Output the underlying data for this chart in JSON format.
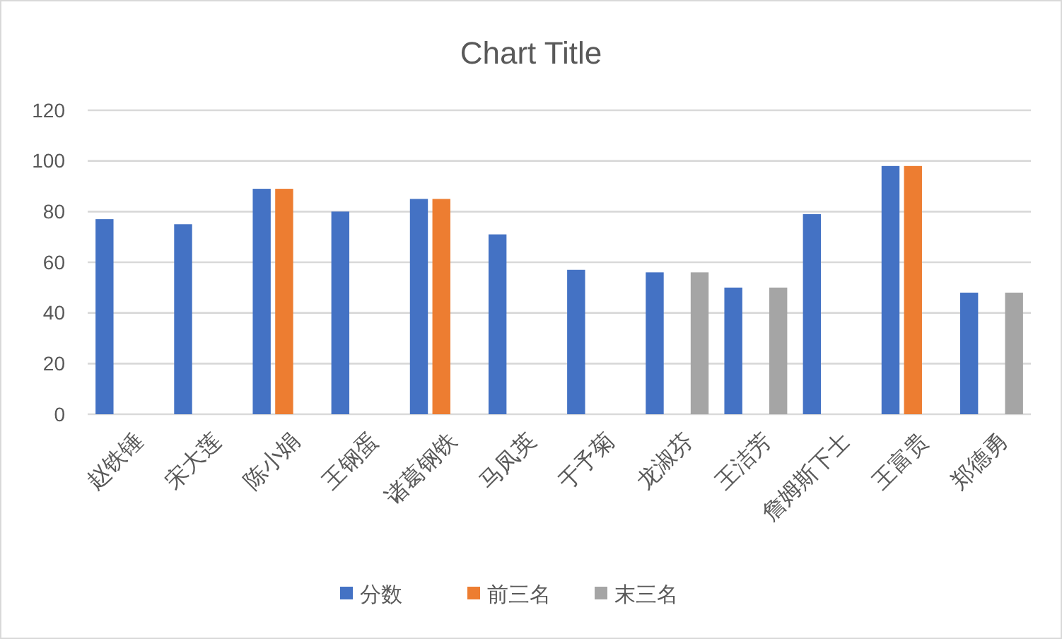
{
  "chart_data": {
    "type": "bar",
    "title": "Chart Title",
    "categories": [
      "赵铁锤",
      "宋大莲",
      "陈小娟",
      "王钢蛋",
      "诸葛钢铁",
      "马凤英",
      "于予菊",
      "龙淑芬",
      "王洁芳",
      "詹姆斯下士",
      "王富贵",
      "郑德勇"
    ],
    "series": [
      {
        "name": "分数",
        "color": "#4472c4",
        "values": [
          77,
          75,
          89,
          80,
          85,
          71,
          57,
          56,
          50,
          79,
          98,
          48
        ]
      },
      {
        "name": "前三名",
        "color": "#ed7d31",
        "values": [
          null,
          null,
          89,
          null,
          85,
          null,
          null,
          null,
          null,
          null,
          98,
          null
        ]
      },
      {
        "name": "末三名",
        "color": "#a5a5a5",
        "values": [
          null,
          null,
          null,
          null,
          null,
          null,
          null,
          56,
          50,
          null,
          null,
          48
        ]
      }
    ],
    "ylim": [
      0,
      120
    ],
    "yticks": [
      0,
      20,
      40,
      60,
      80,
      100,
      120
    ],
    "grid": "y",
    "legend": "bottom"
  }
}
